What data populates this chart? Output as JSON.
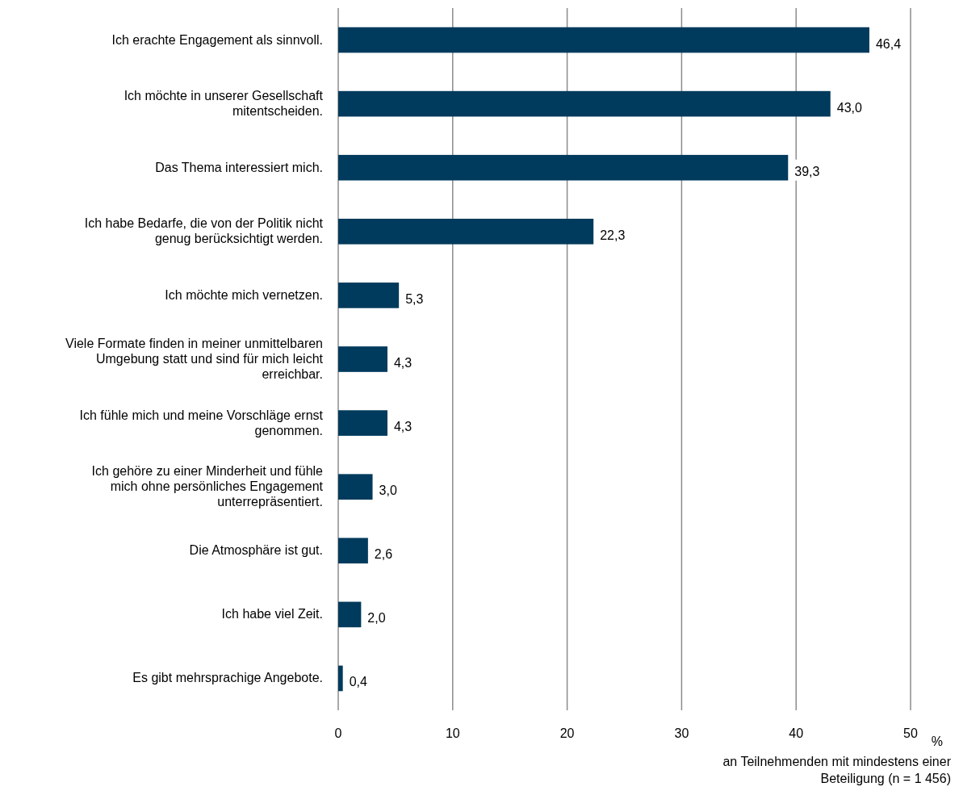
{
  "chart_data": {
    "type": "bar",
    "orientation": "horizontal",
    "categories": [
      "Ich erachte Engagement als sinnvoll.",
      "Ich möchte in unserer Gesellschaft mitentscheiden.",
      "Das Thema interessiert mich.",
      "Ich habe Bedarfe, die von der Politik nicht genug berücksichtigt werden.",
      "Ich möchte mich vernetzen.",
      "Viele Formate finden in meiner unmittelbaren Umgebung statt und sind für mich leicht erreichbar.",
      "Ich fühle mich und meine Vorschläge ernst genommen.",
      "Ich gehöre zu einer Minderheit und fühle mich ohne persönliches Engagement unterrepräsentiert.",
      "Die Atmosphäre ist gut.",
      "Ich habe viel Zeit.",
      "Es gibt mehrsprachige Angebote."
    ],
    "values": [
      46.4,
      43.0,
      39.3,
      22.3,
      5.3,
      4.3,
      4.3,
      3.0,
      2.6,
      2.0,
      0.4
    ],
    "value_labels": [
      "46,4",
      "43,0",
      "39,3",
      "22,3",
      "5,3",
      "4,3",
      "4,3",
      "3,0",
      "2,6",
      "2,0",
      "0,4"
    ],
    "color": "#003a5c",
    "xlim": [
      0,
      50
    ],
    "xticks": [
      0,
      10,
      20,
      30,
      40,
      50
    ],
    "grid": "x",
    "xlabel": "%",
    "annotations": [
      "an Teilnehmenden mit mindestens einer Beteiligung (n = 1 456)"
    ]
  }
}
